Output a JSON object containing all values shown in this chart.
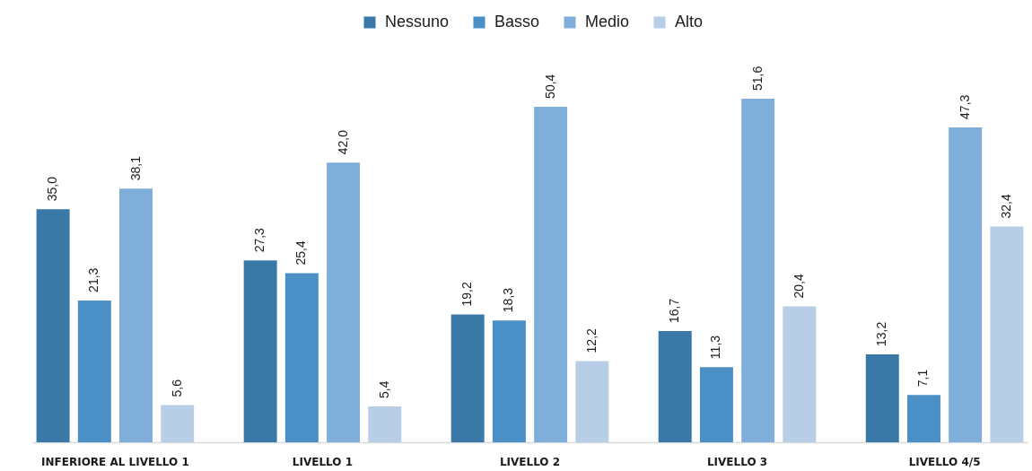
{
  "chart_data": {
    "type": "bar",
    "categories": [
      "INFERIORE AL LIVELLO 1",
      "LIVELLO 1",
      "LIVELLO 2",
      "LIVELLO 3",
      "LIVELLO 4/5"
    ],
    "series": [
      {
        "name": "Nessuno",
        "color": "#3a78a8",
        "values": [
          35.0,
          27.3,
          19.2,
          16.7,
          13.2
        ],
        "value_labels": [
          "35,0",
          "27,3",
          "19,2",
          "16,7",
          "13,2"
        ]
      },
      {
        "name": "Basso",
        "color": "#4a8fc6",
        "values": [
          21.3,
          25.4,
          18.3,
          11.3,
          7.1
        ],
        "value_labels": [
          "21,3",
          "25,4",
          "18,3",
          "11,3",
          "7,1"
        ]
      },
      {
        "name": "Medio",
        "color": "#80aedb",
        "values": [
          38.1,
          42.0,
          50.4,
          51.6,
          47.3
        ],
        "value_labels": [
          "38,1",
          "42,0",
          "50,4",
          "51,6",
          "47,3"
        ]
      },
      {
        "name": "Alto",
        "color": "#b8cde6",
        "values": [
          5.6,
          5.4,
          12.2,
          20.4,
          32.4
        ],
        "value_labels": [
          "5,6",
          "5,4",
          "12,2",
          "20,4",
          "32,4"
        ]
      }
    ],
    "legend": "top",
    "grid": false
  }
}
